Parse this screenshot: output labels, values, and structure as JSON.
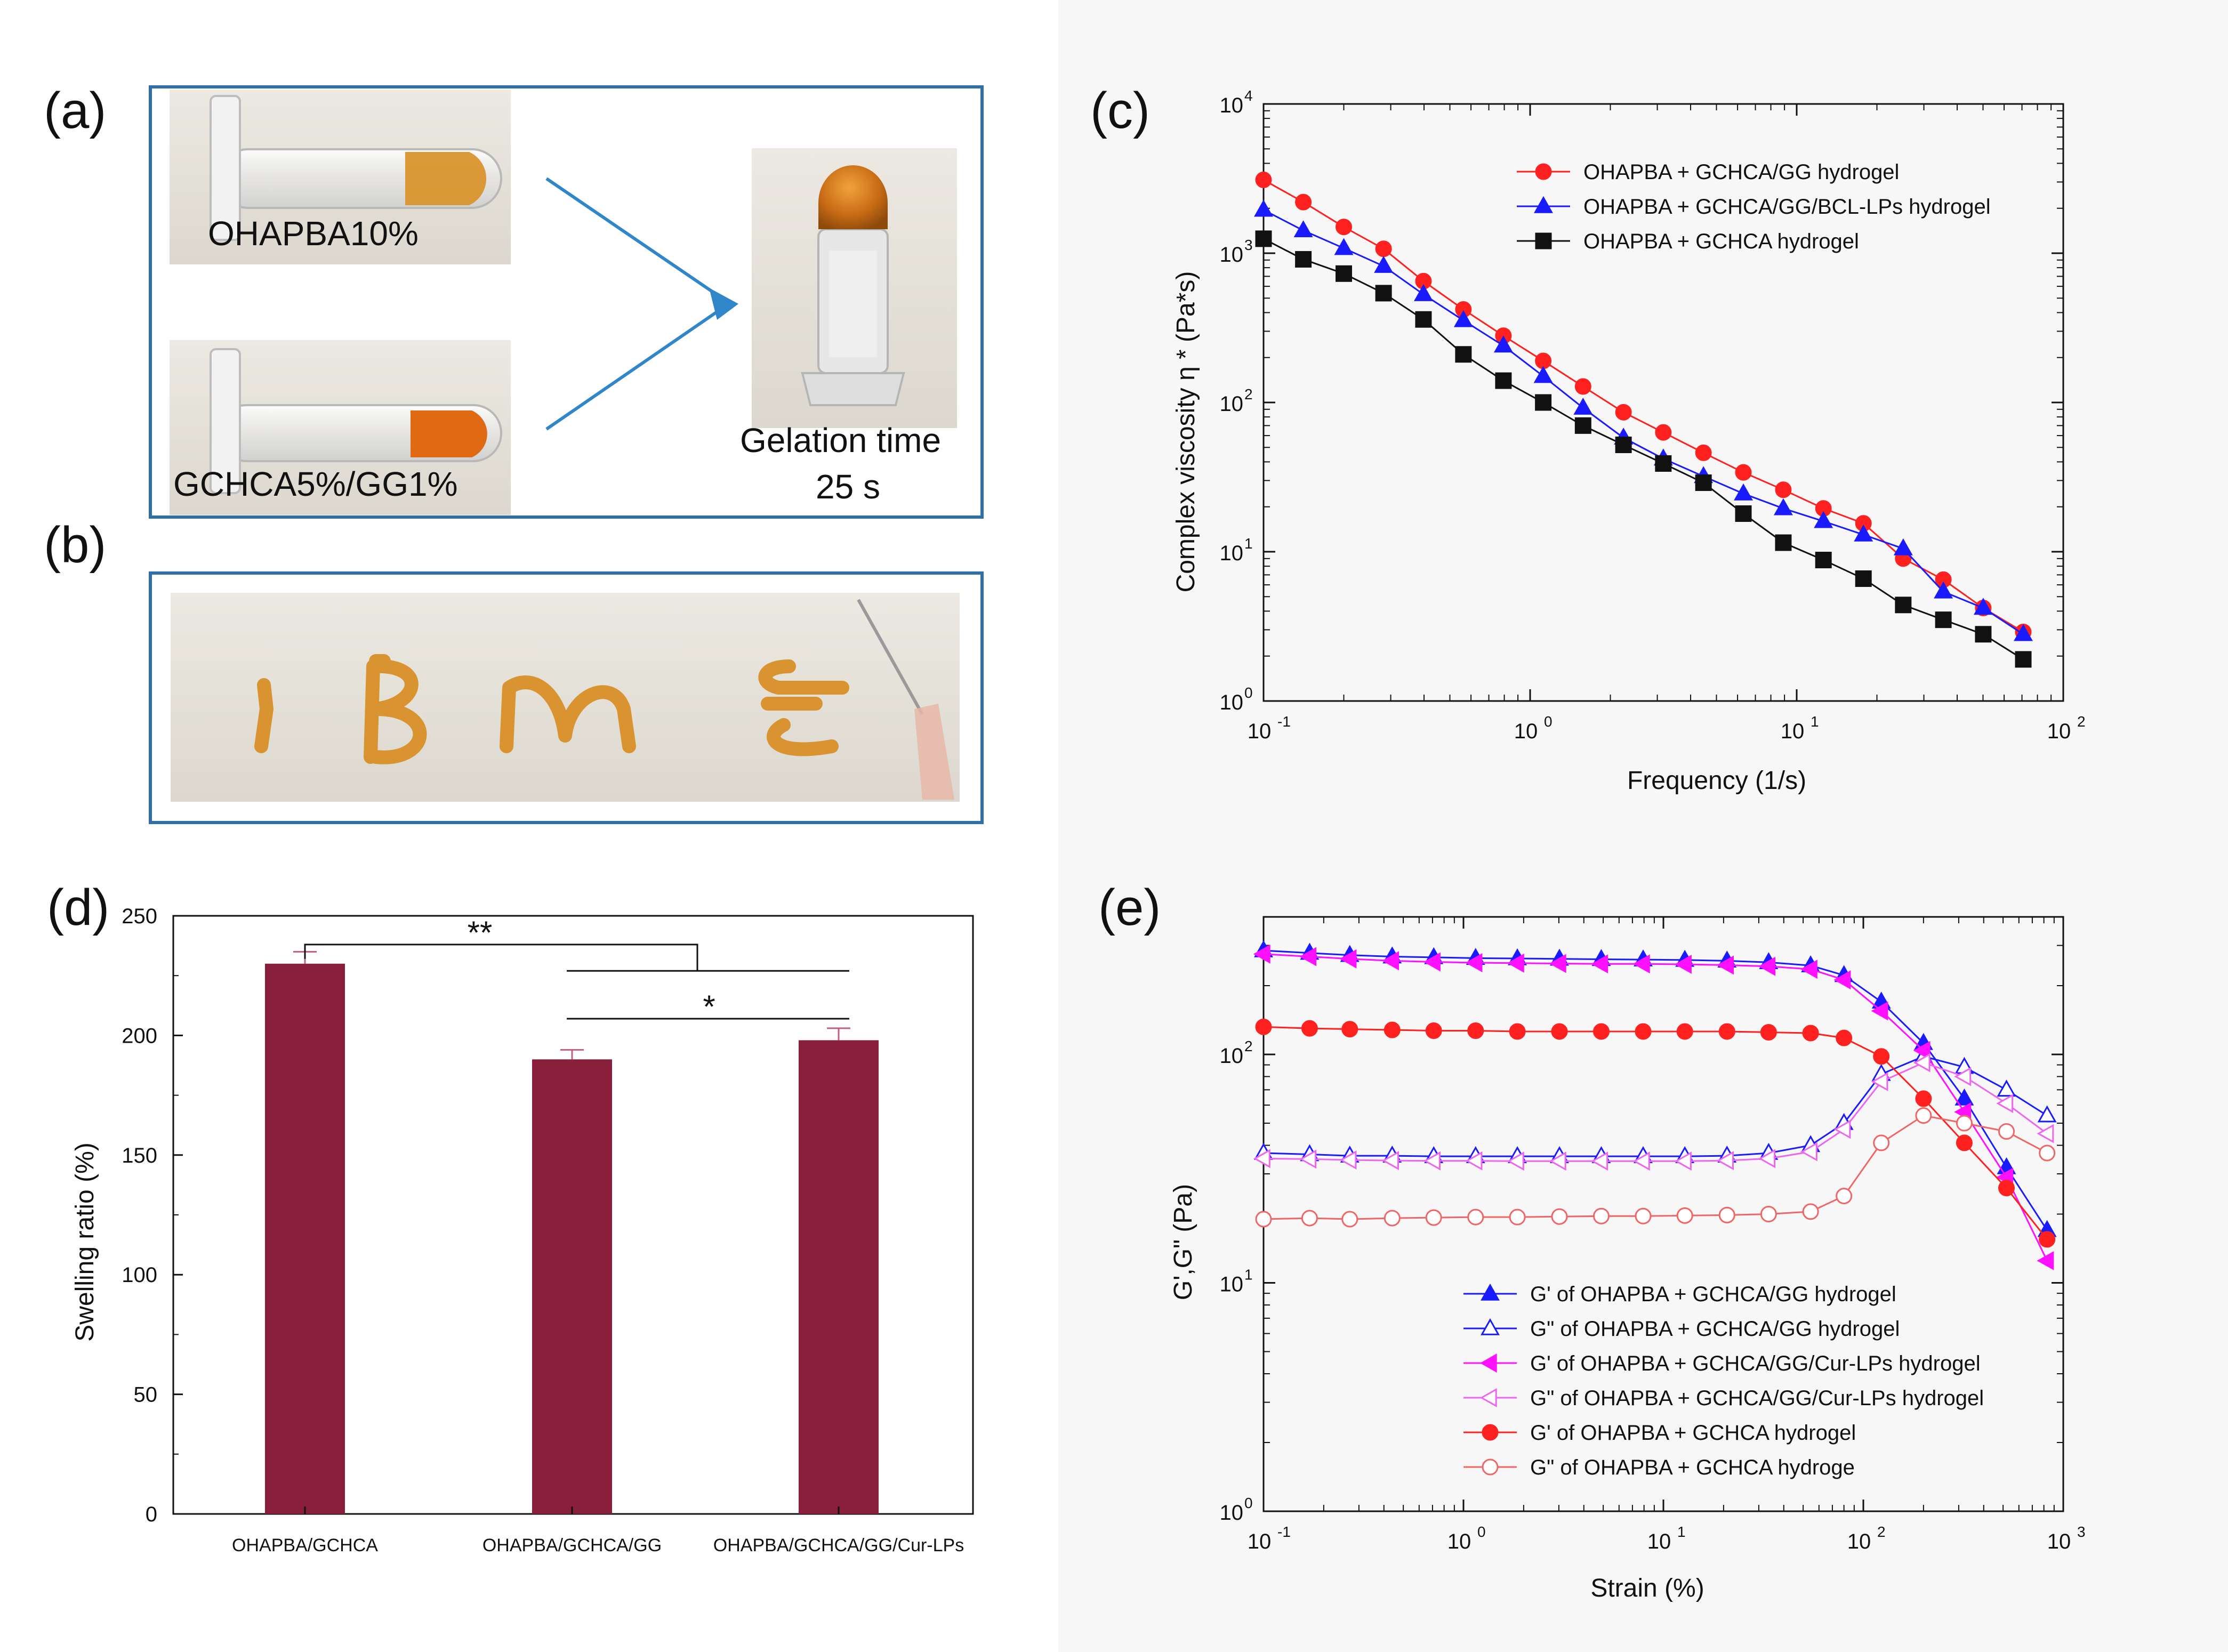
{
  "panel_labels": {
    "a": "(a)",
    "b": "(b)",
    "c": "(c)",
    "d": "(d)",
    "e": "(e)"
  },
  "photo_a": {
    "tube1_label": "OHAPBA10%",
    "tube2_label": "GCHCA5%/GG1%",
    "gelation_label": "Gelation time",
    "gelation_value": "25 s"
  },
  "colors": {
    "red": "#ff2020",
    "blue": "#1a1aff",
    "black": "#111111",
    "magenta": "#ff10ff",
    "pink": "#ee66ee",
    "salmon": "#f06666",
    "bar": "#8a1f3c",
    "frame": "#2f6fa8",
    "arrow": "#2f86c8",
    "gel": "#c8781c"
  },
  "chart_data": [
    {
      "id": "c",
      "type": "line",
      "xscale": "log",
      "yscale": "log",
      "xlim": [
        0.1,
        100
      ],
      "ylim": [
        1,
        10000
      ],
      "xlabel": "Frequency (1/s)",
      "ylabel": "Complex viscosity η * (Pa*s)",
      "xticks": [
        {
          "v": 0.1,
          "base": "10",
          "exp": "-1"
        },
        {
          "v": 1,
          "base": "10",
          "exp": "0"
        },
        {
          "v": 10,
          "base": "10",
          "exp": "1"
        },
        {
          "v": 100,
          "base": "10",
          "exp": "2"
        }
      ],
      "yticks": [
        {
          "v": 1,
          "base": "10",
          "exp": "0"
        },
        {
          "v": 10,
          "base": "10",
          "exp": "1"
        },
        {
          "v": 100,
          "base": "10",
          "exp": "2"
        },
        {
          "v": 1000,
          "base": "10",
          "exp": "3"
        },
        {
          "v": 10000,
          "base": "10",
          "exp": "4"
        }
      ],
      "legend_position": "top-right",
      "x": [
        0.1,
        0.141,
        0.2,
        0.282,
        0.398,
        0.562,
        0.794,
        1.12,
        1.58,
        2.24,
        3.16,
        4.47,
        6.31,
        8.91,
        12.6,
        17.8,
        25.1,
        35.5,
        50.1,
        70.8
      ],
      "series": [
        {
          "name": "OHAPBA + GCHCA/GG hydrogel",
          "color": "#ff2020",
          "marker": "circle",
          "filled": true,
          "values": [
            3100,
            2200,
            1500,
            1070,
            650,
            420,
            280,
            190,
            128,
            86,
            63,
            46,
            34,
            26,
            19.5,
            15.5,
            9,
            6.5,
            4.2,
            2.9
          ]
        },
        {
          "name": "OHAPBA + GCHCA/GG/BCL-LPs hydrogel",
          "color": "#1a1aff",
          "marker": "triangle-up",
          "filled": true,
          "values": [
            1950,
            1420,
            1080,
            820,
            530,
            355,
            240,
            150,
            92,
            58,
            42,
            32,
            24.5,
            19.5,
            16,
            13,
            10.5,
            5.4,
            4.2,
            2.8
          ]
        },
        {
          "name": "OHAPBA + GCHCA hydrogel",
          "color": "#111111",
          "marker": "square",
          "filled": true,
          "values": [
            1250,
            910,
            730,
            540,
            360,
            210,
            140,
            100,
            70,
            52,
            39,
            29,
            18,
            11.5,
            8.8,
            6.6,
            4.4,
            3.5,
            2.8,
            1.9
          ]
        }
      ]
    },
    {
      "id": "d",
      "type": "bar",
      "categories": [
        "OHAPBA/GCHCA",
        "OHAPBA/GCHCA/GG",
        "OHAPBA/GCHCA/GG/Cur-LPs"
      ],
      "values": [
        230,
        190,
        198
      ],
      "errors": [
        5,
        4,
        5
      ],
      "ylabel": "Swelling ratio (%)",
      "ylim": [
        0,
        250
      ],
      "yticks": [
        0,
        50,
        100,
        150,
        200,
        250
      ],
      "significance": [
        {
          "from": 0,
          "to": "1-2",
          "label": "**"
        },
        {
          "from": 1,
          "to": 2,
          "label": "*"
        }
      ]
    },
    {
      "id": "e",
      "type": "line",
      "xscale": "log",
      "yscale": "log",
      "xlim": [
        0.1,
        1000
      ],
      "ylim": [
        1,
        400
      ],
      "xlabel": "Strain (%)",
      "ylabel": "G',G\" (Pa)",
      "xticks": [
        {
          "v": 0.1,
          "base": "10",
          "exp": "-1"
        },
        {
          "v": 1,
          "base": "10",
          "exp": "0"
        },
        {
          "v": 10,
          "base": "10",
          "exp": "1"
        },
        {
          "v": 100,
          "base": "10",
          "exp": "2"
        },
        {
          "v": 1000,
          "base": "10",
          "exp": "3"
        }
      ],
      "yticks": [
        {
          "v": 1,
          "base": "10",
          "exp": "0"
        },
        {
          "v": 10,
          "base": "10",
          "exp": "1"
        },
        {
          "v": 100,
          "base": "10",
          "exp": "2"
        }
      ],
      "legend_position": "bottom-right",
      "x": [
        0.1,
        0.17,
        0.27,
        0.44,
        0.71,
        1.15,
        1.86,
        3.02,
        4.89,
        7.92,
        12.8,
        20.8,
        33.6,
        54.5,
        80,
        123,
        200,
        320,
        520,
        830
      ],
      "series": [
        {
          "name": "G' of OHAPBA + GCHCA/GG hydrogel",
          "color": "#1a1aff",
          "marker": "triangle-up",
          "filled": true,
          "values": [
            285,
            278,
            272,
            268,
            266,
            264,
            263,
            262,
            261,
            260,
            259,
            257,
            253,
            245,
            222,
            170,
            112,
            64,
            32,
            17
          ]
        },
        {
          "name": "G\" of  OHAPBA + GCHCA/GG hydrogel",
          "color": "#1a1aff",
          "marker": "triangle-up",
          "filled": false,
          "values": [
            37,
            36.5,
            36,
            36,
            35.8,
            35.8,
            35.8,
            35.8,
            35.8,
            35.8,
            35.8,
            36,
            37,
            40,
            50,
            82,
            98,
            88,
            70,
            54
          ]
        },
        {
          "name": "G' of OHAPBA + GCHCA/GG/Cur-LPs hydrogel",
          "color": "#ff10ff",
          "marker": "triangle-left",
          "filled": true,
          "values": [
            275,
            268,
            262,
            257,
            254,
            252,
            251,
            250,
            249,
            249,
            248,
            246,
            243,
            236,
            212,
            155,
            104,
            56,
            29,
            12.5
          ]
        },
        {
          "name": "G\" of OHAPBA + GCHCA/GG/Cur-LPs hydrogel",
          "color": "#ee66ee",
          "marker": "triangle-left",
          "filled": false,
          "values": [
            35,
            34.8,
            34.5,
            34.3,
            34.2,
            34.2,
            34.1,
            34.1,
            34.1,
            34.1,
            34.1,
            34.3,
            35,
            37.5,
            47,
            76,
            92,
            80,
            61,
            45
          ]
        },
        {
          "name": "G' of OHAPBA + GCHCA hydrogel",
          "color": "#ff2020",
          "marker": "circle",
          "filled": true,
          "values": [
            132,
            130,
            129,
            128,
            127,
            127,
            126,
            126,
            126,
            126,
            126,
            126,
            125,
            124,
            118,
            98,
            64,
            41,
            26,
            15.5
          ]
        },
        {
          "name": "G\" of OHAPBA + GCHCA hydroge",
          "color": "#f06666",
          "marker": "circle",
          "filled": false,
          "values": [
            19,
            19.2,
            19,
            19.2,
            19.3,
            19.4,
            19.4,
            19.5,
            19.6,
            19.6,
            19.7,
            19.8,
            20,
            20.5,
            24,
            41,
            54,
            50,
            46,
            37
          ]
        }
      ]
    }
  ]
}
